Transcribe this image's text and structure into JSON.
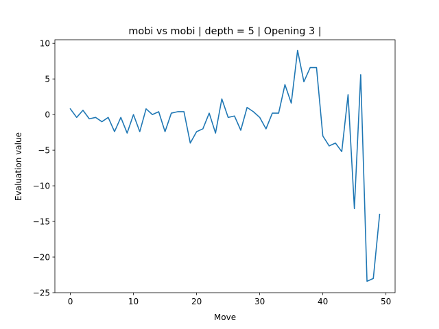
{
  "chart_data": {
    "type": "line",
    "title": "mobi vs mobi | depth = 5 | Opening 3 |",
    "xlabel": "Move",
    "ylabel": "Evaluation value",
    "xlim": [
      -2.45,
      51.45
    ],
    "ylim": [
      -25,
      10.5
    ],
    "xticks": [
      0,
      10,
      20,
      30,
      40,
      50
    ],
    "xtick_labels": [
      "0",
      "10",
      "20",
      "30",
      "40",
      "50"
    ],
    "yticks": [
      -25,
      -20,
      -15,
      -10,
      -5,
      0,
      5,
      10
    ],
    "ytick_labels": [
      "−25",
      "−20",
      "−15",
      "−10",
      "−5",
      "0",
      "5",
      "10"
    ],
    "grid": false,
    "legend": null,
    "series": [
      {
        "color": "#1f77b4",
        "x": [
          0,
          1,
          2,
          3,
          4,
          5,
          6,
          7,
          8,
          9,
          10,
          11,
          12,
          13,
          14,
          15,
          16,
          17,
          18,
          19,
          20,
          21,
          22,
          23,
          24,
          25,
          26,
          27,
          28,
          29,
          30,
          31,
          32,
          33,
          34,
          35,
          36,
          37,
          38,
          39,
          40,
          41,
          42,
          43,
          44,
          45,
          46,
          47,
          48,
          49
        ],
        "values": [
          0.8,
          -0.4,
          0.6,
          -0.6,
          -0.4,
          -1.0,
          -0.4,
          -2.4,
          -0.4,
          -2.6,
          0.0,
          -2.4,
          0.8,
          0.0,
          0.4,
          -2.4,
          0.2,
          0.4,
          0.4,
          -4.0,
          -2.4,
          -2.0,
          0.2,
          -2.6,
          2.2,
          -0.4,
          -0.2,
          -2.2,
          1.0,
          0.4,
          -0.4,
          -2.0,
          0.2,
          0.2,
          4.2,
          1.6,
          9.0,
          4.6,
          6.6,
          6.6,
          -3.0,
          -4.4,
          -4.0,
          -5.2,
          2.8,
          -13.2,
          5.6,
          -23.4,
          -23.0,
          -14.0
        ]
      }
    ]
  }
}
